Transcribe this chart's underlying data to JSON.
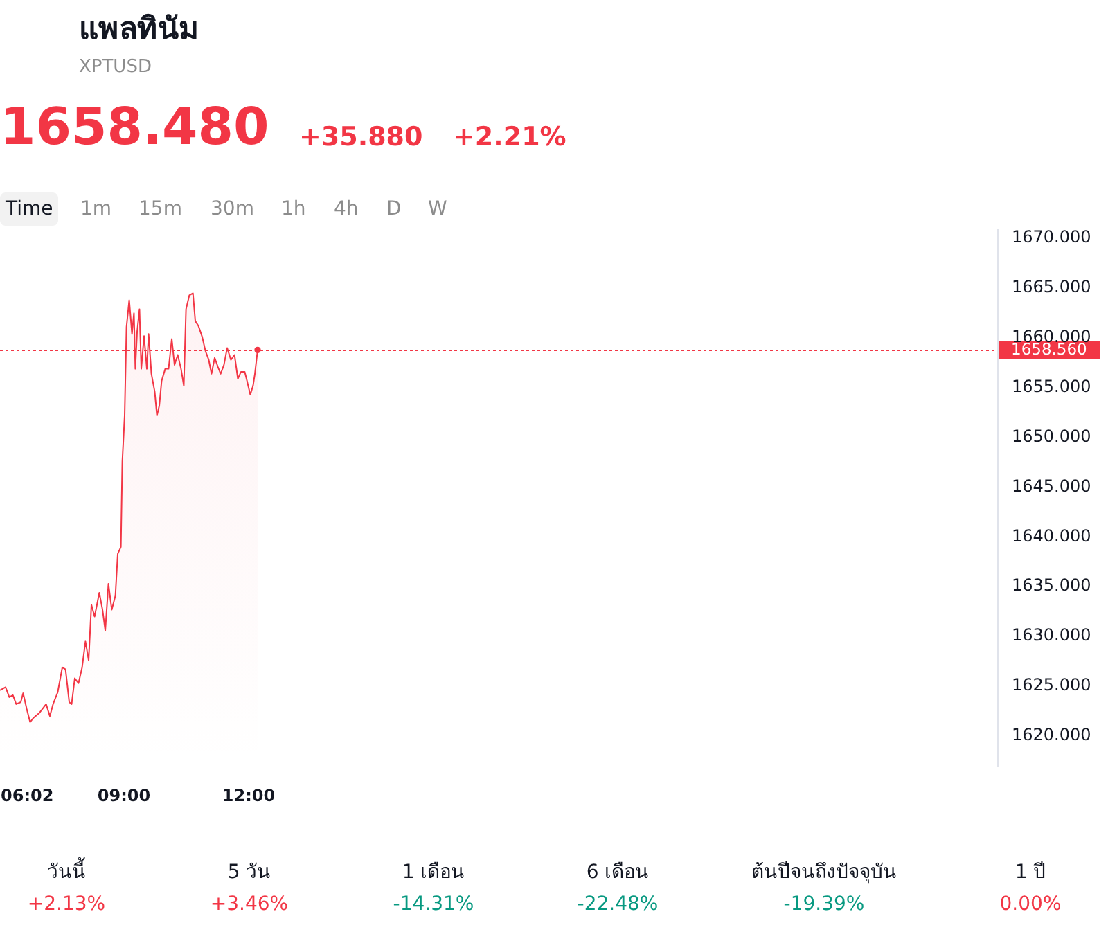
{
  "chart_data": {
    "type": "area",
    "title": "แพลทินัม",
    "subtitle": "XPTUSD",
    "annotations": [
      "1658.480",
      "+35.880",
      "+2.21%",
      "Time",
      "1m",
      "15m",
      "30m",
      "1h",
      "4h",
      "D",
      "W",
      "วันนี้",
      "+2.13%",
      "5 วัน",
      "+3.46%",
      "1 เดือน",
      "-14.31%",
      "6 เดือน",
      "-22.48%",
      "ต้นปีจนถึงปัจจุบัน",
      "-19.39%",
      "1 ปี",
      "0.00%"
    ],
    "xlim": [
      6.033,
      30.033
    ],
    "xticks": [
      {
        "value": 6.033,
        "label": "06:02"
      },
      {
        "value": 9,
        "label": "09:00"
      },
      {
        "value": 12,
        "label": "12:00"
      }
    ],
    "ylim": [
      1616.8,
      1670.8
    ],
    "yticks": [
      {
        "value": 1620,
        "label": "1620.000"
      },
      {
        "value": 1625,
        "label": "1625.000"
      },
      {
        "value": 1630,
        "label": "1630.000"
      },
      {
        "value": 1635,
        "label": "1635.000"
      },
      {
        "value": 1640,
        "label": "1640.000"
      },
      {
        "value": 1645,
        "label": "1645.000"
      },
      {
        "value": 1650,
        "label": "1650.000"
      },
      {
        "value": 1655,
        "label": "1655.000"
      },
      {
        "value": 1660,
        "label": "1660.000"
      },
      {
        "value": 1665,
        "label": "1665.000"
      },
      {
        "value": 1670,
        "label": "1670.000"
      }
    ],
    "grid": false,
    "ref_lines": [
      {
        "axis": "y",
        "value": 1658.56,
        "label": "1658.560",
        "color": "#f23645",
        "line_style": "dotted"
      }
    ],
    "series": [
      {
        "color": "#f23645",
        "x": [
          6.033,
          6.167,
          6.257,
          6.343,
          6.423,
          6.533,
          6.59,
          6.677,
          6.757,
          6.833,
          6.977,
          7.143,
          7.233,
          7.31,
          7.423,
          7.533,
          7.61,
          7.7,
          7.757,
          7.833,
          7.923,
          8.01,
          8.09,
          8.167,
          8.233,
          8.31,
          8.423,
          8.5,
          8.567,
          8.643,
          8.723,
          8.81,
          8.867,
          8.943,
          8.977,
          9.033,
          9.077,
          9.143,
          9.21,
          9.257,
          9.29,
          9.333,
          9.39,
          9.433,
          9.5,
          9.567,
          9.61,
          9.677,
          9.757,
          9.81,
          9.867,
          9.923,
          10.01,
          10.09,
          10.167,
          10.233,
          10.31,
          10.39,
          10.457,
          10.51,
          10.59,
          10.677,
          10.733,
          10.81,
          10.9,
          10.977,
          11.057,
          11.123,
          11.2,
          11.277,
          11.343,
          11.423,
          11.5,
          11.59,
          11.677,
          11.757,
          11.833,
          11.923,
          11.977,
          12.057,
          12.123,
          12.167,
          12.233
        ],
        "values": [
          1624.4,
          1624.7,
          1623.7,
          1623.9,
          1623.0,
          1623.2,
          1624.1,
          1622.5,
          1621.2,
          1621.6,
          1622.1,
          1623.0,
          1621.8,
          1623.0,
          1624.2,
          1626.7,
          1626.5,
          1623.2,
          1623.0,
          1625.6,
          1625.1,
          1626.7,
          1629.3,
          1627.4,
          1633.0,
          1631.8,
          1634.2,
          1632.5,
          1630.4,
          1635.1,
          1632.5,
          1633.9,
          1638.1,
          1638.8,
          1647.4,
          1652.0,
          1660.9,
          1663.6,
          1660.2,
          1662.3,
          1656.7,
          1660.4,
          1662.7,
          1656.7,
          1660.0,
          1656.7,
          1660.2,
          1656.2,
          1654.4,
          1652.0,
          1653.0,
          1655.5,
          1656.7,
          1656.7,
          1659.7,
          1657.1,
          1658.1,
          1656.7,
          1655.0,
          1662.7,
          1664.1,
          1664.3,
          1661.5,
          1661.0,
          1659.9,
          1658.5,
          1657.6,
          1656.2,
          1657.8,
          1656.9,
          1656.2,
          1657.1,
          1658.8,
          1657.6,
          1658.1,
          1655.7,
          1656.4,
          1656.4,
          1655.5,
          1654.1,
          1655.0,
          1656.2,
          1658.6
        ]
      },
      {
        "type": "scatter",
        "color": "#f23645",
        "x": [
          12.233
        ],
        "values": [
          1658.6
        ]
      }
    ]
  }
}
